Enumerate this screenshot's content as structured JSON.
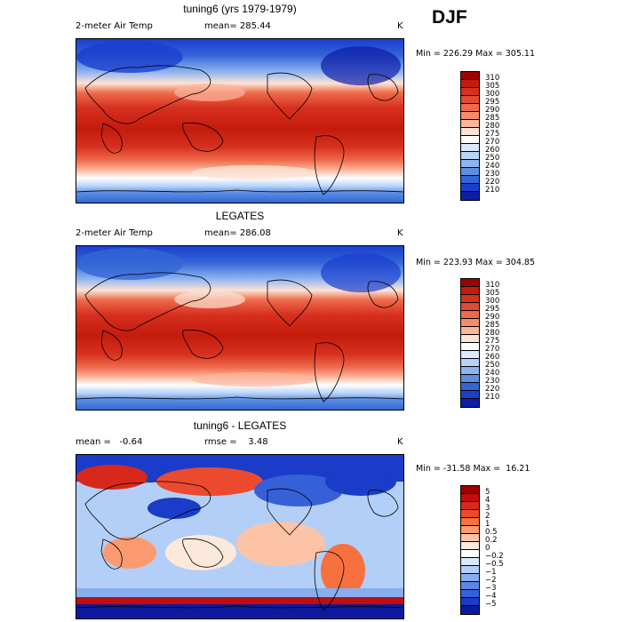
{
  "season": "DJF",
  "panels": [
    {
      "title": "tuning6 (yrs 1979-1979)",
      "left": "2-meter Air Temp",
      "middle": "mean= 285.44",
      "unit": "K",
      "minmax": "Min = 226.29 Max = 305.11",
      "type": "abs",
      "colorbar": {
        "labels": [
          "310",
          "305",
          "300",
          "295",
          "290",
          "285",
          "280",
          "275",
          "270",
          "260",
          "250",
          "240",
          "230",
          "220",
          "210"
        ],
        "colors": [
          "#a00000",
          "#c41b0c",
          "#d7301f",
          "#e34a33",
          "#ee6a4a",
          "#f78c6c",
          "#fcb59b",
          "#fde3d4",
          "#ffffff",
          "#dceaff",
          "#b7d3fa",
          "#8db4f0",
          "#5d8ee3",
          "#3465d6",
          "#1a3fcf",
          "#0d1da8"
        ]
      }
    },
    {
      "title": "LEGATES",
      "left": "2-meter Air Temp",
      "middle": "mean= 286.08",
      "unit": "K",
      "minmax": "Min = 223.93 Max = 304.85",
      "type": "abs",
      "colorbar": {
        "labels": [
          "310",
          "305",
          "300",
          "295",
          "290",
          "285",
          "280",
          "275",
          "270",
          "260",
          "250",
          "240",
          "230",
          "220",
          "210"
        ],
        "colors": [
          "#a00000",
          "#c41b0c",
          "#d7301f",
          "#e34a33",
          "#ee6a4a",
          "#f78c6c",
          "#fcb59b",
          "#fde3d4",
          "#ffffff",
          "#dceaff",
          "#b7d3fa",
          "#8db4f0",
          "#5d8ee3",
          "#3465d6",
          "#1a3fcf",
          "#0d1da8"
        ]
      }
    },
    {
      "title": "tuning6 - LEGATES",
      "left": "mean =   -0.64",
      "middle": "rmse =    3.48",
      "unit": "K",
      "minmax": "Min = -31.58 Max =  16.21",
      "type": "diff",
      "colorbar": {
        "labels": [
          "5",
          "4",
          "3",
          "2",
          "1",
          "0.5",
          "0.2",
          "0",
          "−0.2",
          "−0.5",
          "−1",
          "−2",
          "−3",
          "−4",
          "−5"
        ],
        "colors": [
          "#9b0000",
          "#c00d0d",
          "#d8281c",
          "#ec4a2e",
          "#f7703f",
          "#fb9a6f",
          "#fdc3a7",
          "#fde9dc",
          "#ffffff",
          "#d9e8ff",
          "#b3cff7",
          "#88aef0",
          "#5c86e6",
          "#3560d8",
          "#1a3cc8",
          "#0d1aa0"
        ]
      }
    }
  ]
}
